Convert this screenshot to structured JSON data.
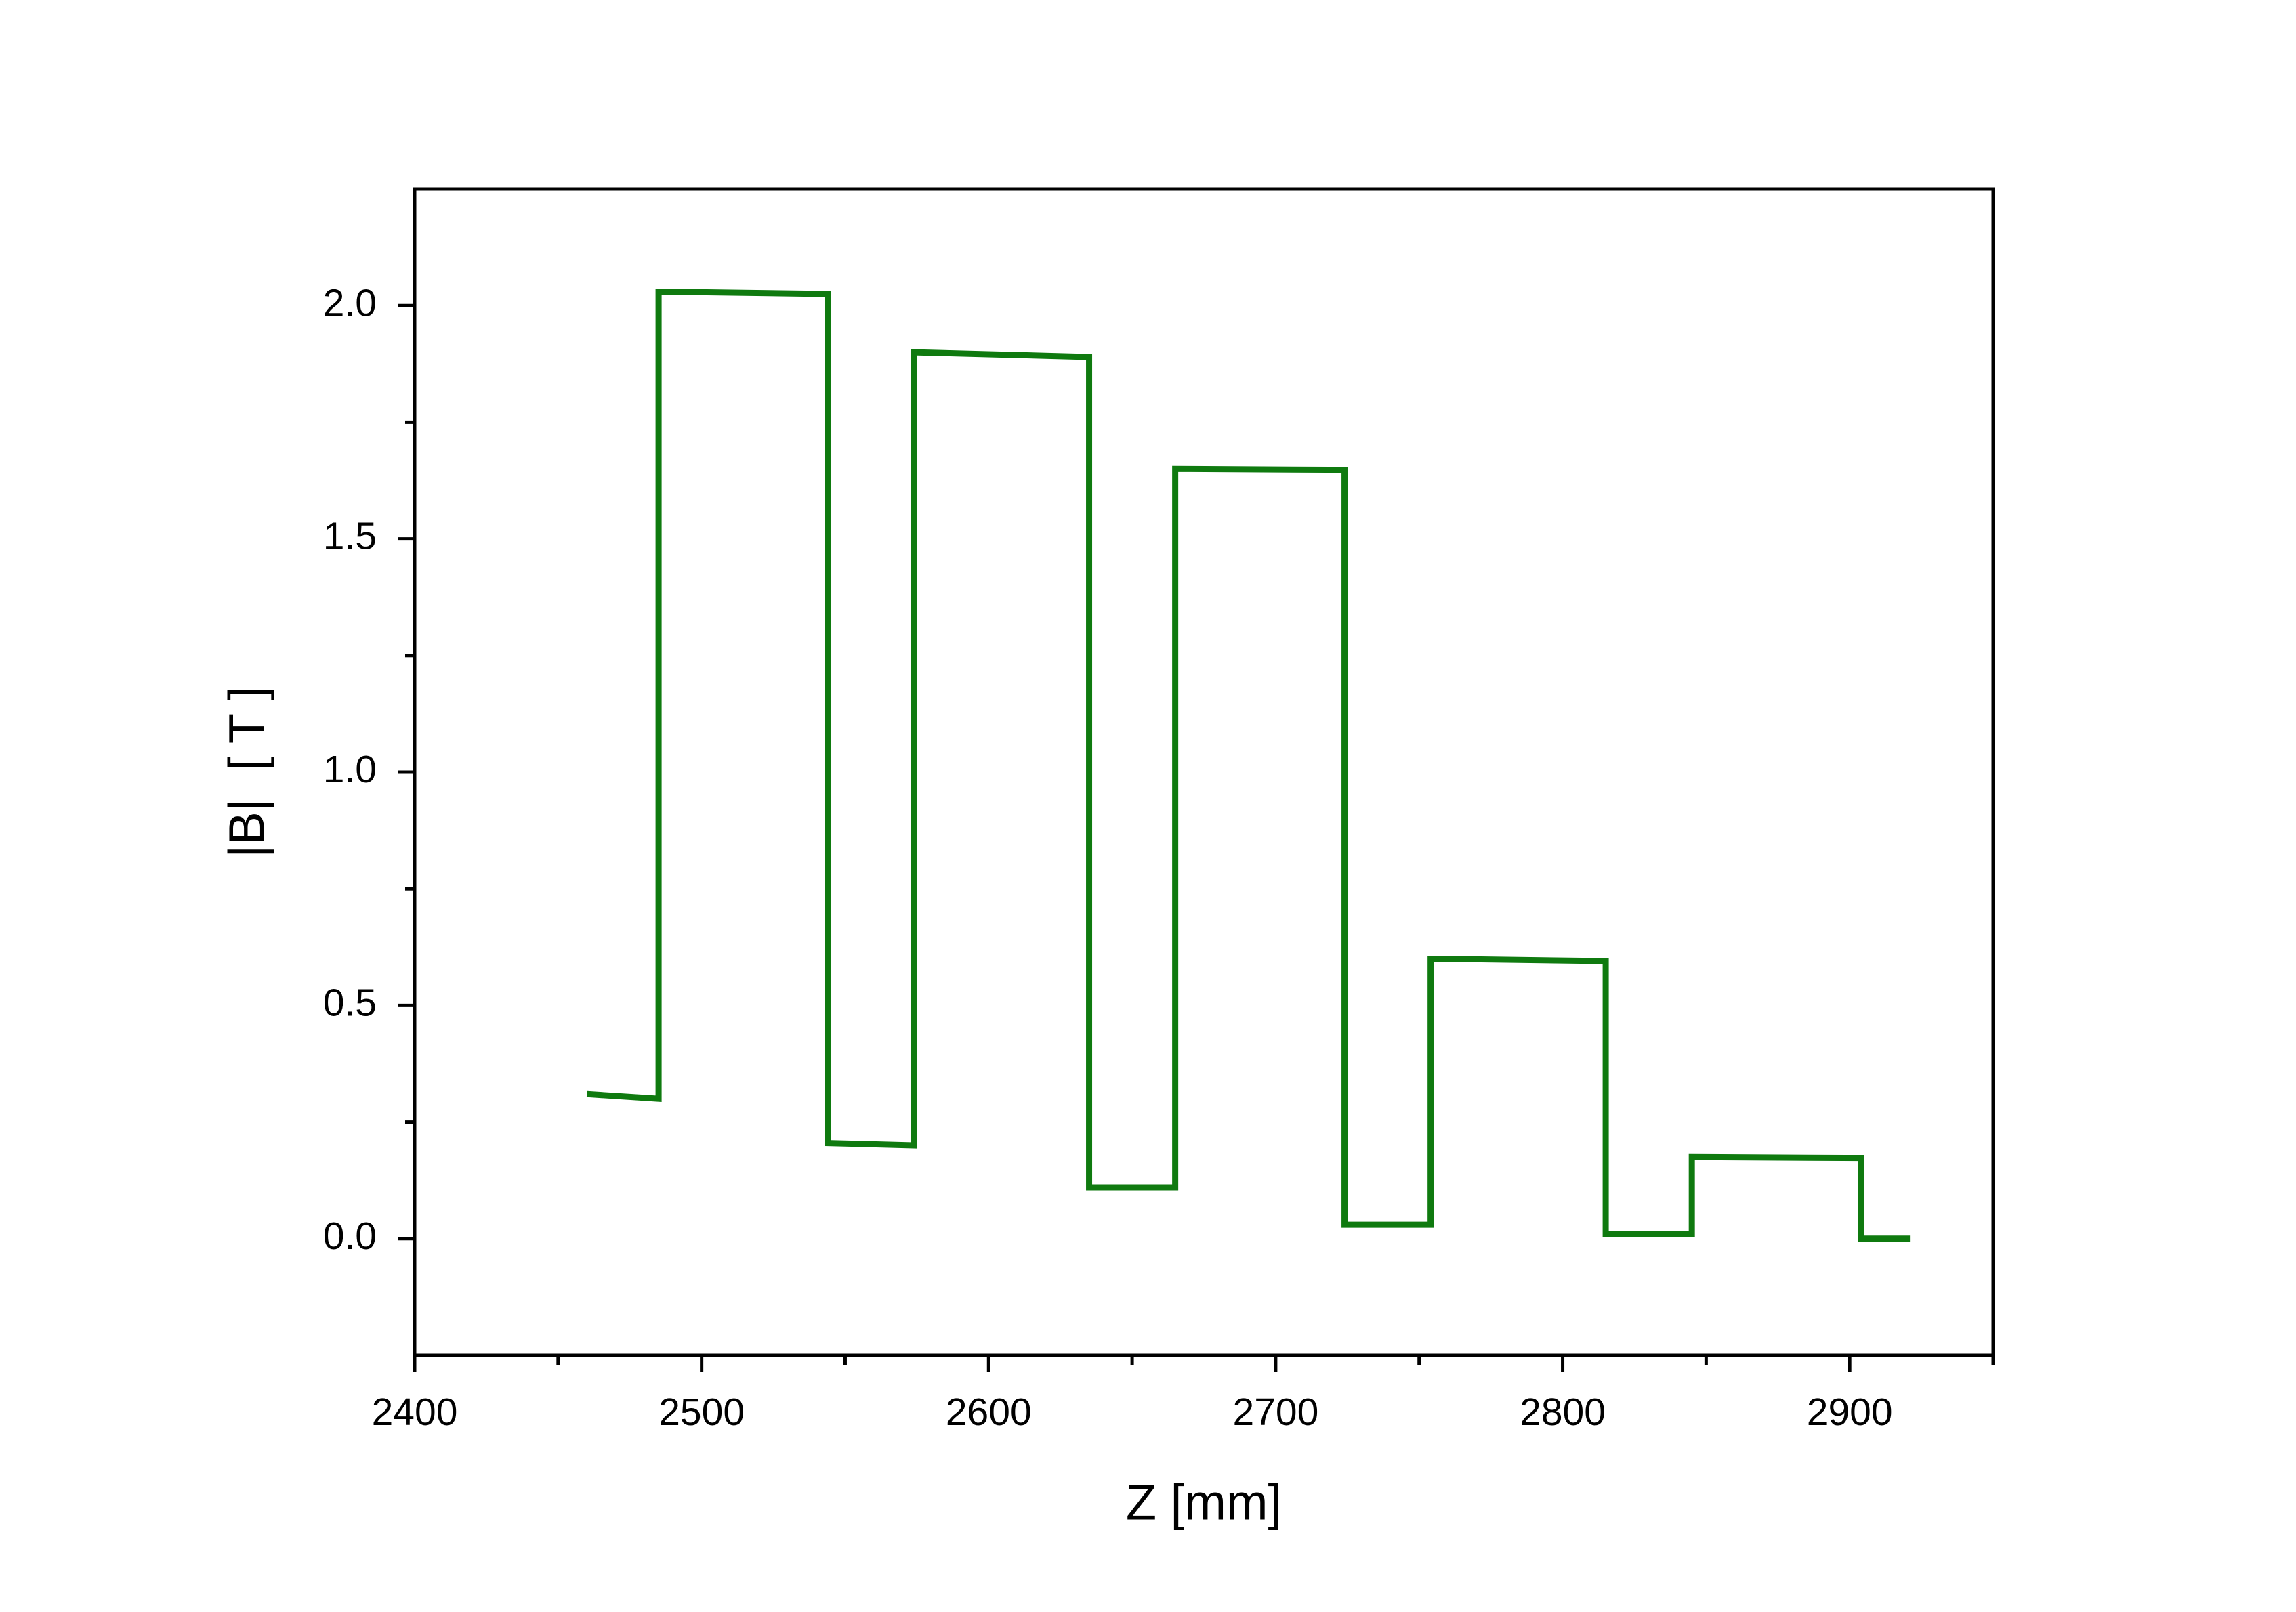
{
  "chart_data": {
    "type": "line",
    "xlabel": "Z [mm]",
    "ylabel": "|B|  [ T ]",
    "xlim": [
      2400,
      2950
    ],
    "ylim": [
      -0.25,
      2.25
    ],
    "xticks": [
      2400,
      2500,
      2600,
      2700,
      2800,
      2900
    ],
    "xminorticks": [
      2450,
      2550,
      2650,
      2750,
      2850,
      2950
    ],
    "yticks": [
      {
        "value": 0,
        "label": "0.0"
      },
      {
        "value": 0.5,
        "label": "0.5"
      },
      {
        "value": 1,
        "label": "1.0"
      },
      {
        "value": 1.5,
        "label": "1.5"
      },
      {
        "value": 2,
        "label": "2.0"
      }
    ],
    "yminorticks": [
      0.25,
      0.75,
      1.25,
      1.75
    ],
    "x": [
      2460,
      2485,
      2485,
      2544,
      2544,
      2574,
      2574,
      2635,
      2635,
      2665,
      2665,
      2724,
      2724,
      2754,
      2754,
      2815,
      2815,
      2845,
      2845,
      2904,
      2904,
      2921
    ],
    "series": [
      {
        "color": "#0f7a0f",
        "values": [
          0.31,
          0.3,
          2.03,
          2.025,
          0.205,
          0.2,
          1.9,
          1.89,
          0.11,
          0.11,
          1.65,
          1.648,
          0.03,
          0.03,
          0.6,
          0.595,
          0.01,
          0.01,
          0.175,
          0.173,
          0.0,
          0.0
        ]
      }
    ],
    "grid": false
  }
}
